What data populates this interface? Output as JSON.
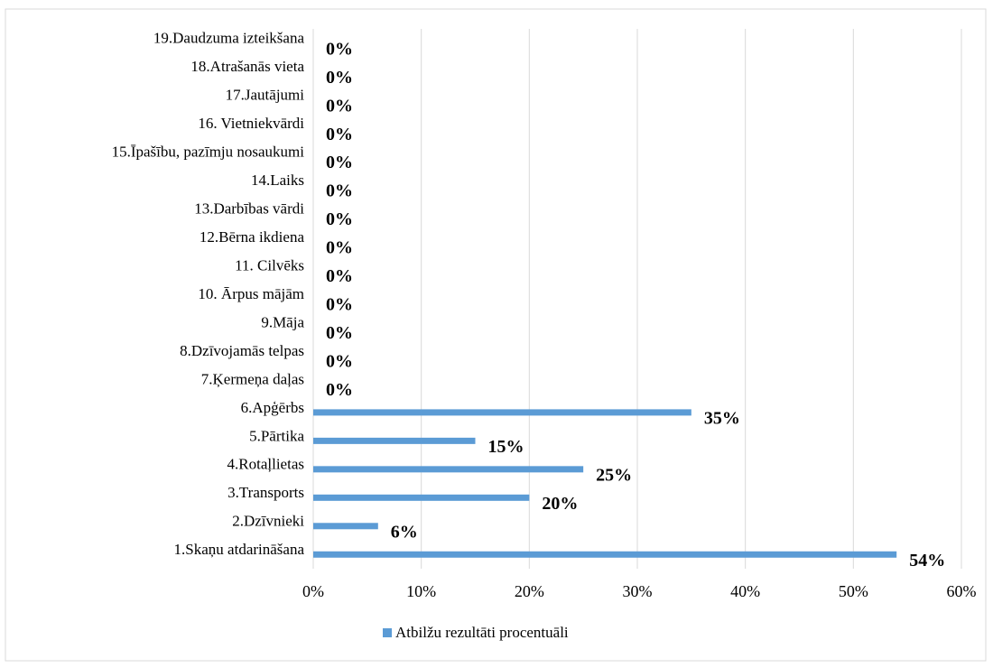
{
  "chart_data": {
    "type": "barh",
    "categories": [
      "1.Skaņu atdarināšana",
      "2.Dzīvnieki",
      "3.Transports",
      "4.Rotaļlietas",
      "5.Pārtika",
      "6.Apģērbs",
      "7.Ķermeņa daļas",
      "8.Dzīvojamās telpas",
      "9.Māja",
      "10. Ārpus mājām",
      "11. Cilvēks",
      "12.Bērna ikdiena",
      "13.Darbības vārdi",
      "14.Laiks",
      "15.Īpašību, pazīmju nosaukumi",
      "16. Vietniekvārdi",
      "17.Jautājumi",
      "18.Atrašanās vieta",
      "19.Daudzuma izteikšana"
    ],
    "series": [
      {
        "name": "Atbilžu rezultāti procentuāli",
        "color": "#5b9bd5",
        "values": [
          54,
          6,
          20,
          25,
          15,
          35,
          0,
          0,
          0,
          0,
          0,
          0,
          0,
          0,
          0,
          0,
          0,
          0,
          0
        ],
        "value_labels": [
          "54%",
          "6%",
          "20%",
          "25%",
          "15%",
          "35%",
          "0%",
          "0%",
          "0%",
          "0%",
          "0%",
          "0%",
          "0%",
          "0%",
          "0%",
          "0%",
          "0%",
          "0%",
          "0%"
        ]
      }
    ],
    "xlim": [
      0,
      60
    ],
    "xticks": [
      {
        "value": 0,
        "label": "0%"
      },
      {
        "value": 10,
        "label": "10%"
      },
      {
        "value": 20,
        "label": "20%"
      },
      {
        "value": 30,
        "label": "30%"
      },
      {
        "value": 40,
        "label": "40%"
      },
      {
        "value": 50,
        "label": "50%"
      },
      {
        "value": 60,
        "label": "60%"
      }
    ],
    "grid": true,
    "legend": "bottom"
  }
}
